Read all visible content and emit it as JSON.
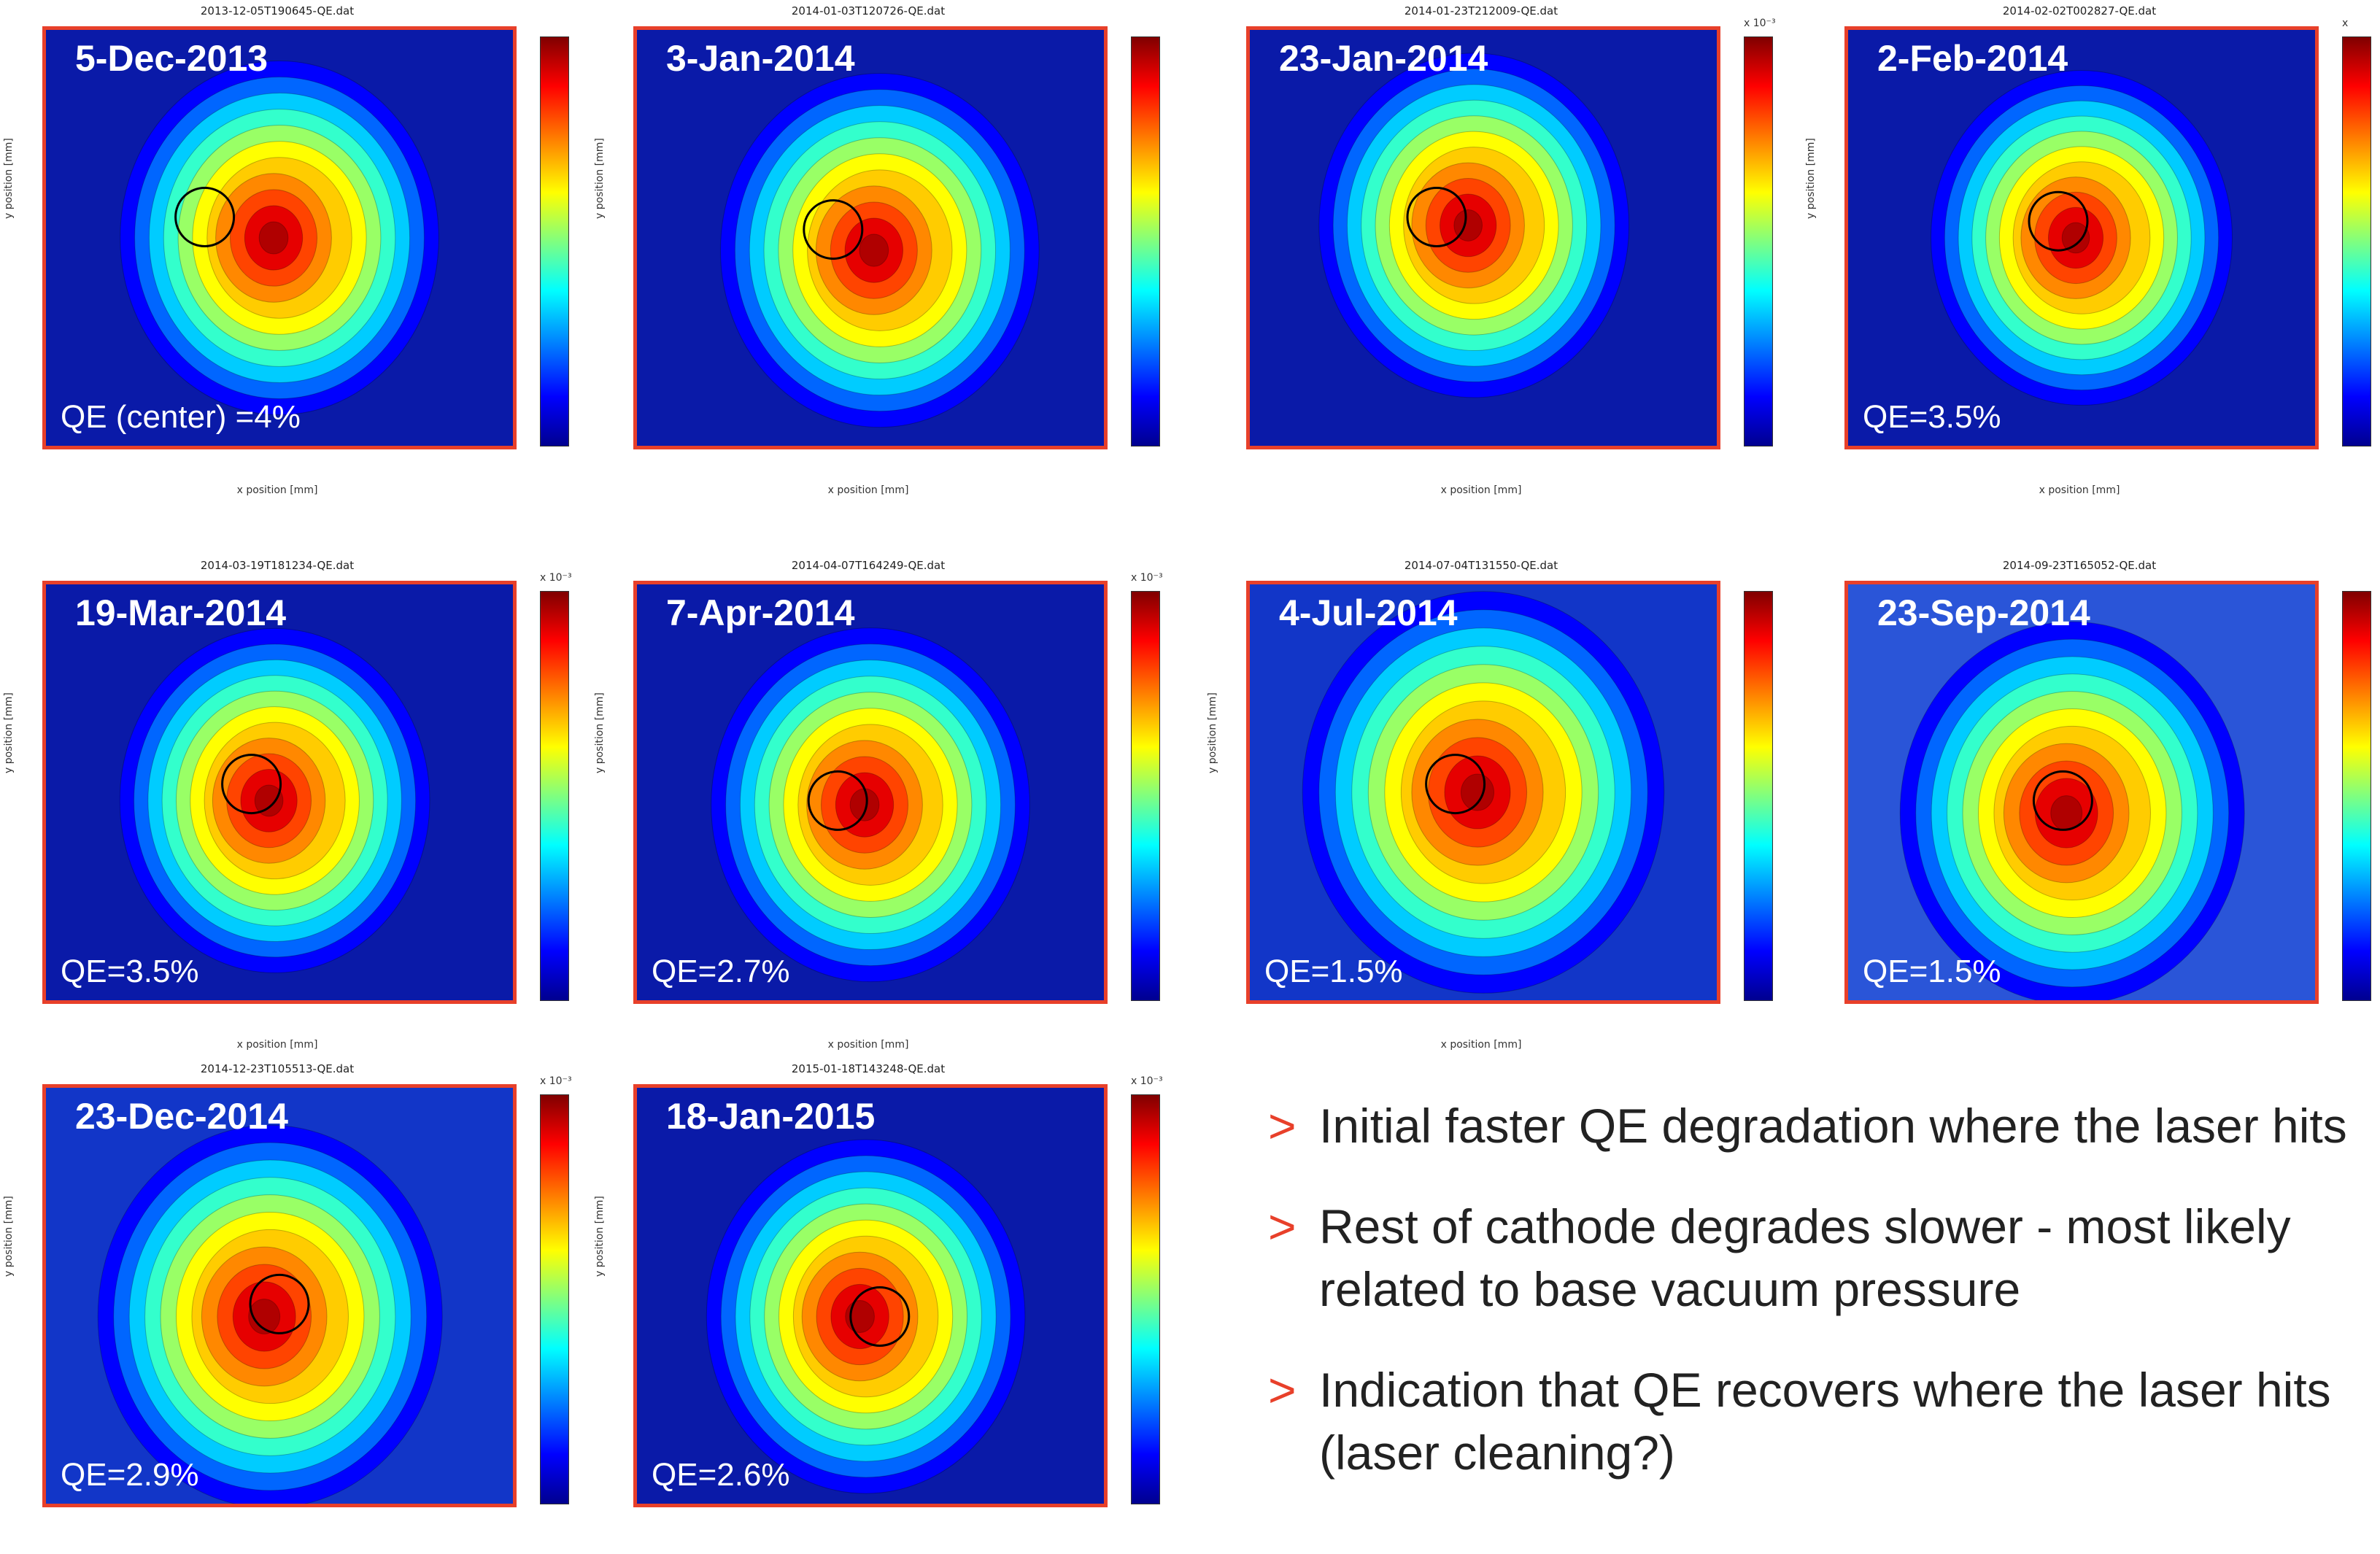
{
  "chart_data": [
    {
      "type": "heatmap",
      "filename": "2013-12-05T190645-QE.dat",
      "title": "5-Dec-2013",
      "qe": "QE (center) =4%",
      "xlabel": "x position [mm]",
      "ylabel": "y position [mm]",
      "colorbar_exponent": ""
    },
    {
      "type": "heatmap",
      "filename": "2014-01-03T120726-QE.dat",
      "title": "3-Jan-2014",
      "qe": "",
      "xlabel": "x position [mm]",
      "ylabel": "y position [mm]",
      "colorbar_exponent": ""
    },
    {
      "type": "heatmap",
      "filename": "2014-01-23T212009-QE.dat",
      "title": "23-Jan-2014",
      "qe": "",
      "xlabel": "x position [mm]",
      "ylabel": "",
      "colorbar_exponent": "x 10⁻³"
    },
    {
      "type": "heatmap",
      "filename": "2014-02-02T002827-QE.dat",
      "title": "2-Feb-2014",
      "qe": "QE=3.5%",
      "xlabel": "x position [mm]",
      "ylabel": "y position [mm]",
      "colorbar_exponent": "x"
    },
    {
      "type": "heatmap",
      "filename": "2014-03-19T181234-QE.dat",
      "title": "19-Mar-2014",
      "qe": "QE=3.5%",
      "xlabel": "x position [mm]",
      "ylabel": "y position [mm]",
      "colorbar_exponent": "x 10⁻³"
    },
    {
      "type": "heatmap",
      "filename": "2014-04-07T164249-QE.dat",
      "title": "7-Apr-2014",
      "qe": "QE=2.7%",
      "xlabel": "x position [mm]",
      "ylabel": "y position [mm]",
      "colorbar_exponent": "x 10⁻³"
    },
    {
      "type": "heatmap",
      "filename": "2014-07-04T131550-QE.dat",
      "title": "4-Jul-2014",
      "qe": "QE=1.5%",
      "xlabel": "x position [mm]",
      "ylabel": "y position [mm]",
      "colorbar_exponent": ""
    },
    {
      "type": "heatmap",
      "filename": "2014-09-23T165052-QE.dat",
      "title": "23-Sep-2014",
      "qe": "QE=1.5%",
      "xlabel": "",
      "ylabel": "",
      "colorbar_exponent": ""
    },
    {
      "type": "heatmap",
      "filename": "2014-12-23T105513-QE.dat",
      "title": "23-Dec-2014",
      "qe": "QE=2.9%",
      "xlabel": "",
      "ylabel": "y position [mm]",
      "colorbar_exponent": "x 10⁻³"
    },
    {
      "type": "heatmap",
      "filename": "2015-01-18T143248-QE.dat",
      "title": "18-Jan-2015",
      "qe": "QE=2.6%",
      "xlabel": "",
      "ylabel": "y position [mm]",
      "colorbar_exponent": "x 10⁻³"
    }
  ],
  "bullets": {
    "marker": ">",
    "items": [
      "Initial faster QE degradation where the laser hits",
      "Rest of cathode degrades slower - most likely related to base vacuum pressure",
      "Indication that QE recovers where the laser hits (laser cleaning?)"
    ]
  }
}
